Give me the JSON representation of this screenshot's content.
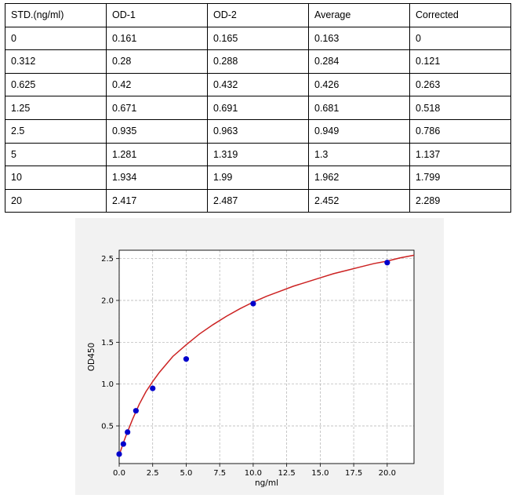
{
  "table": {
    "headers": [
      "STD.(ng/ml)",
      "OD-1",
      "OD-2",
      "Average",
      "Corrected"
    ],
    "rows": [
      [
        "0",
        "0.161",
        "0.165",
        "0.163",
        "0"
      ],
      [
        "0.312",
        "0.28",
        "0.288",
        "0.284",
        "0.121"
      ],
      [
        "0.625",
        "0.42",
        "0.432",
        "0.426",
        "0.263"
      ],
      [
        "1.25",
        "0.671",
        "0.691",
        "0.681",
        "0.518"
      ],
      [
        "2.5",
        "0.935",
        "0.963",
        "0.949",
        "0.786"
      ],
      [
        "5",
        "1.281",
        "1.319",
        "1.3",
        "1.137"
      ],
      [
        "10",
        "1.934",
        "1.99",
        "1.962",
        "1.799"
      ],
      [
        "20",
        "2.417",
        "2.487",
        "2.452",
        "2.289"
      ]
    ]
  },
  "chart_data": {
    "type": "scatter",
    "xlabel": "ng/ml",
    "ylabel": "OD450",
    "xlim": [
      0,
      22
    ],
    "ylim": [
      0.05,
      2.6
    ],
    "xticks": [
      "0.0",
      "2.5",
      "5.0",
      "7.5",
      "10.0",
      "12.5",
      "15.0",
      "17.5",
      "20.0"
    ],
    "yticks": [
      "0.5",
      "1.0",
      "1.5",
      "2.0",
      "2.5"
    ],
    "grid": true,
    "points": {
      "x": [
        0,
        0.312,
        0.625,
        1.25,
        2.5,
        5,
        10,
        20
      ],
      "y": [
        0.163,
        0.284,
        0.426,
        0.681,
        0.949,
        1.3,
        1.962,
        2.452
      ]
    },
    "fit_curve": {
      "x": [
        0,
        0.25,
        0.5,
        1,
        1.5,
        2,
        2.5,
        3,
        4,
        5,
        6,
        7,
        8,
        9,
        10,
        11,
        12,
        13,
        14,
        15,
        16,
        17,
        18,
        19,
        20,
        21,
        22
      ],
      "y": [
        0.15,
        0.27,
        0.38,
        0.58,
        0.76,
        0.91,
        1.03,
        1.14,
        1.33,
        1.47,
        1.6,
        1.71,
        1.81,
        1.9,
        1.98,
        2.05,
        2.11,
        2.17,
        2.22,
        2.27,
        2.32,
        2.36,
        2.4,
        2.44,
        2.47,
        2.51,
        2.54
      ]
    },
    "colors": {
      "points": "#0000cc",
      "curve": "#cc2222",
      "grid": "#b0b0b0"
    }
  }
}
